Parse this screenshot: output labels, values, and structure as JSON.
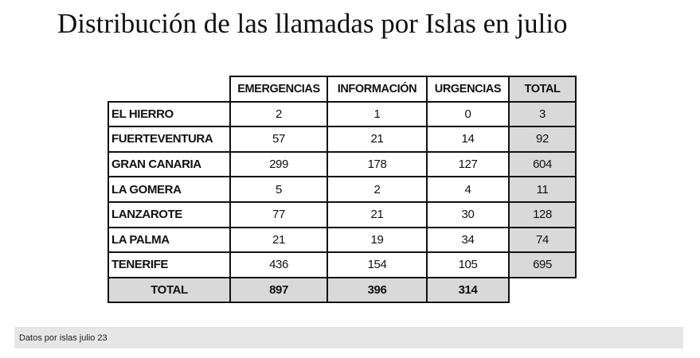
{
  "title": "Distribución de las llamadas por Islas en julio",
  "table": {
    "header": [
      "EMERGENCIAS",
      "INFORMACIÓN",
      "URGENCIAS",
      "TOTAL"
    ],
    "rows": [
      [
        "EL HIERRO",
        2,
        1,
        0,
        3
      ],
      [
        "FUERTEVENTURA",
        57,
        21,
        14,
        92
      ],
      [
        "GRAN CANARIA",
        299,
        178,
        127,
        604
      ],
      [
        "LA GOMERA",
        5,
        2,
        4,
        11
      ],
      [
        "LANZAROTE",
        77,
        21,
        30,
        128
      ],
      [
        "LA PALMA",
        21,
        19,
        34,
        74
      ],
      [
        "TENERIFE",
        436,
        154,
        105,
        695
      ]
    ],
    "total_row": {
      "label": "TOTAL",
      "values": [
        897,
        396,
        314
      ]
    }
  },
  "caption": "Datos por islas julio 23"
}
